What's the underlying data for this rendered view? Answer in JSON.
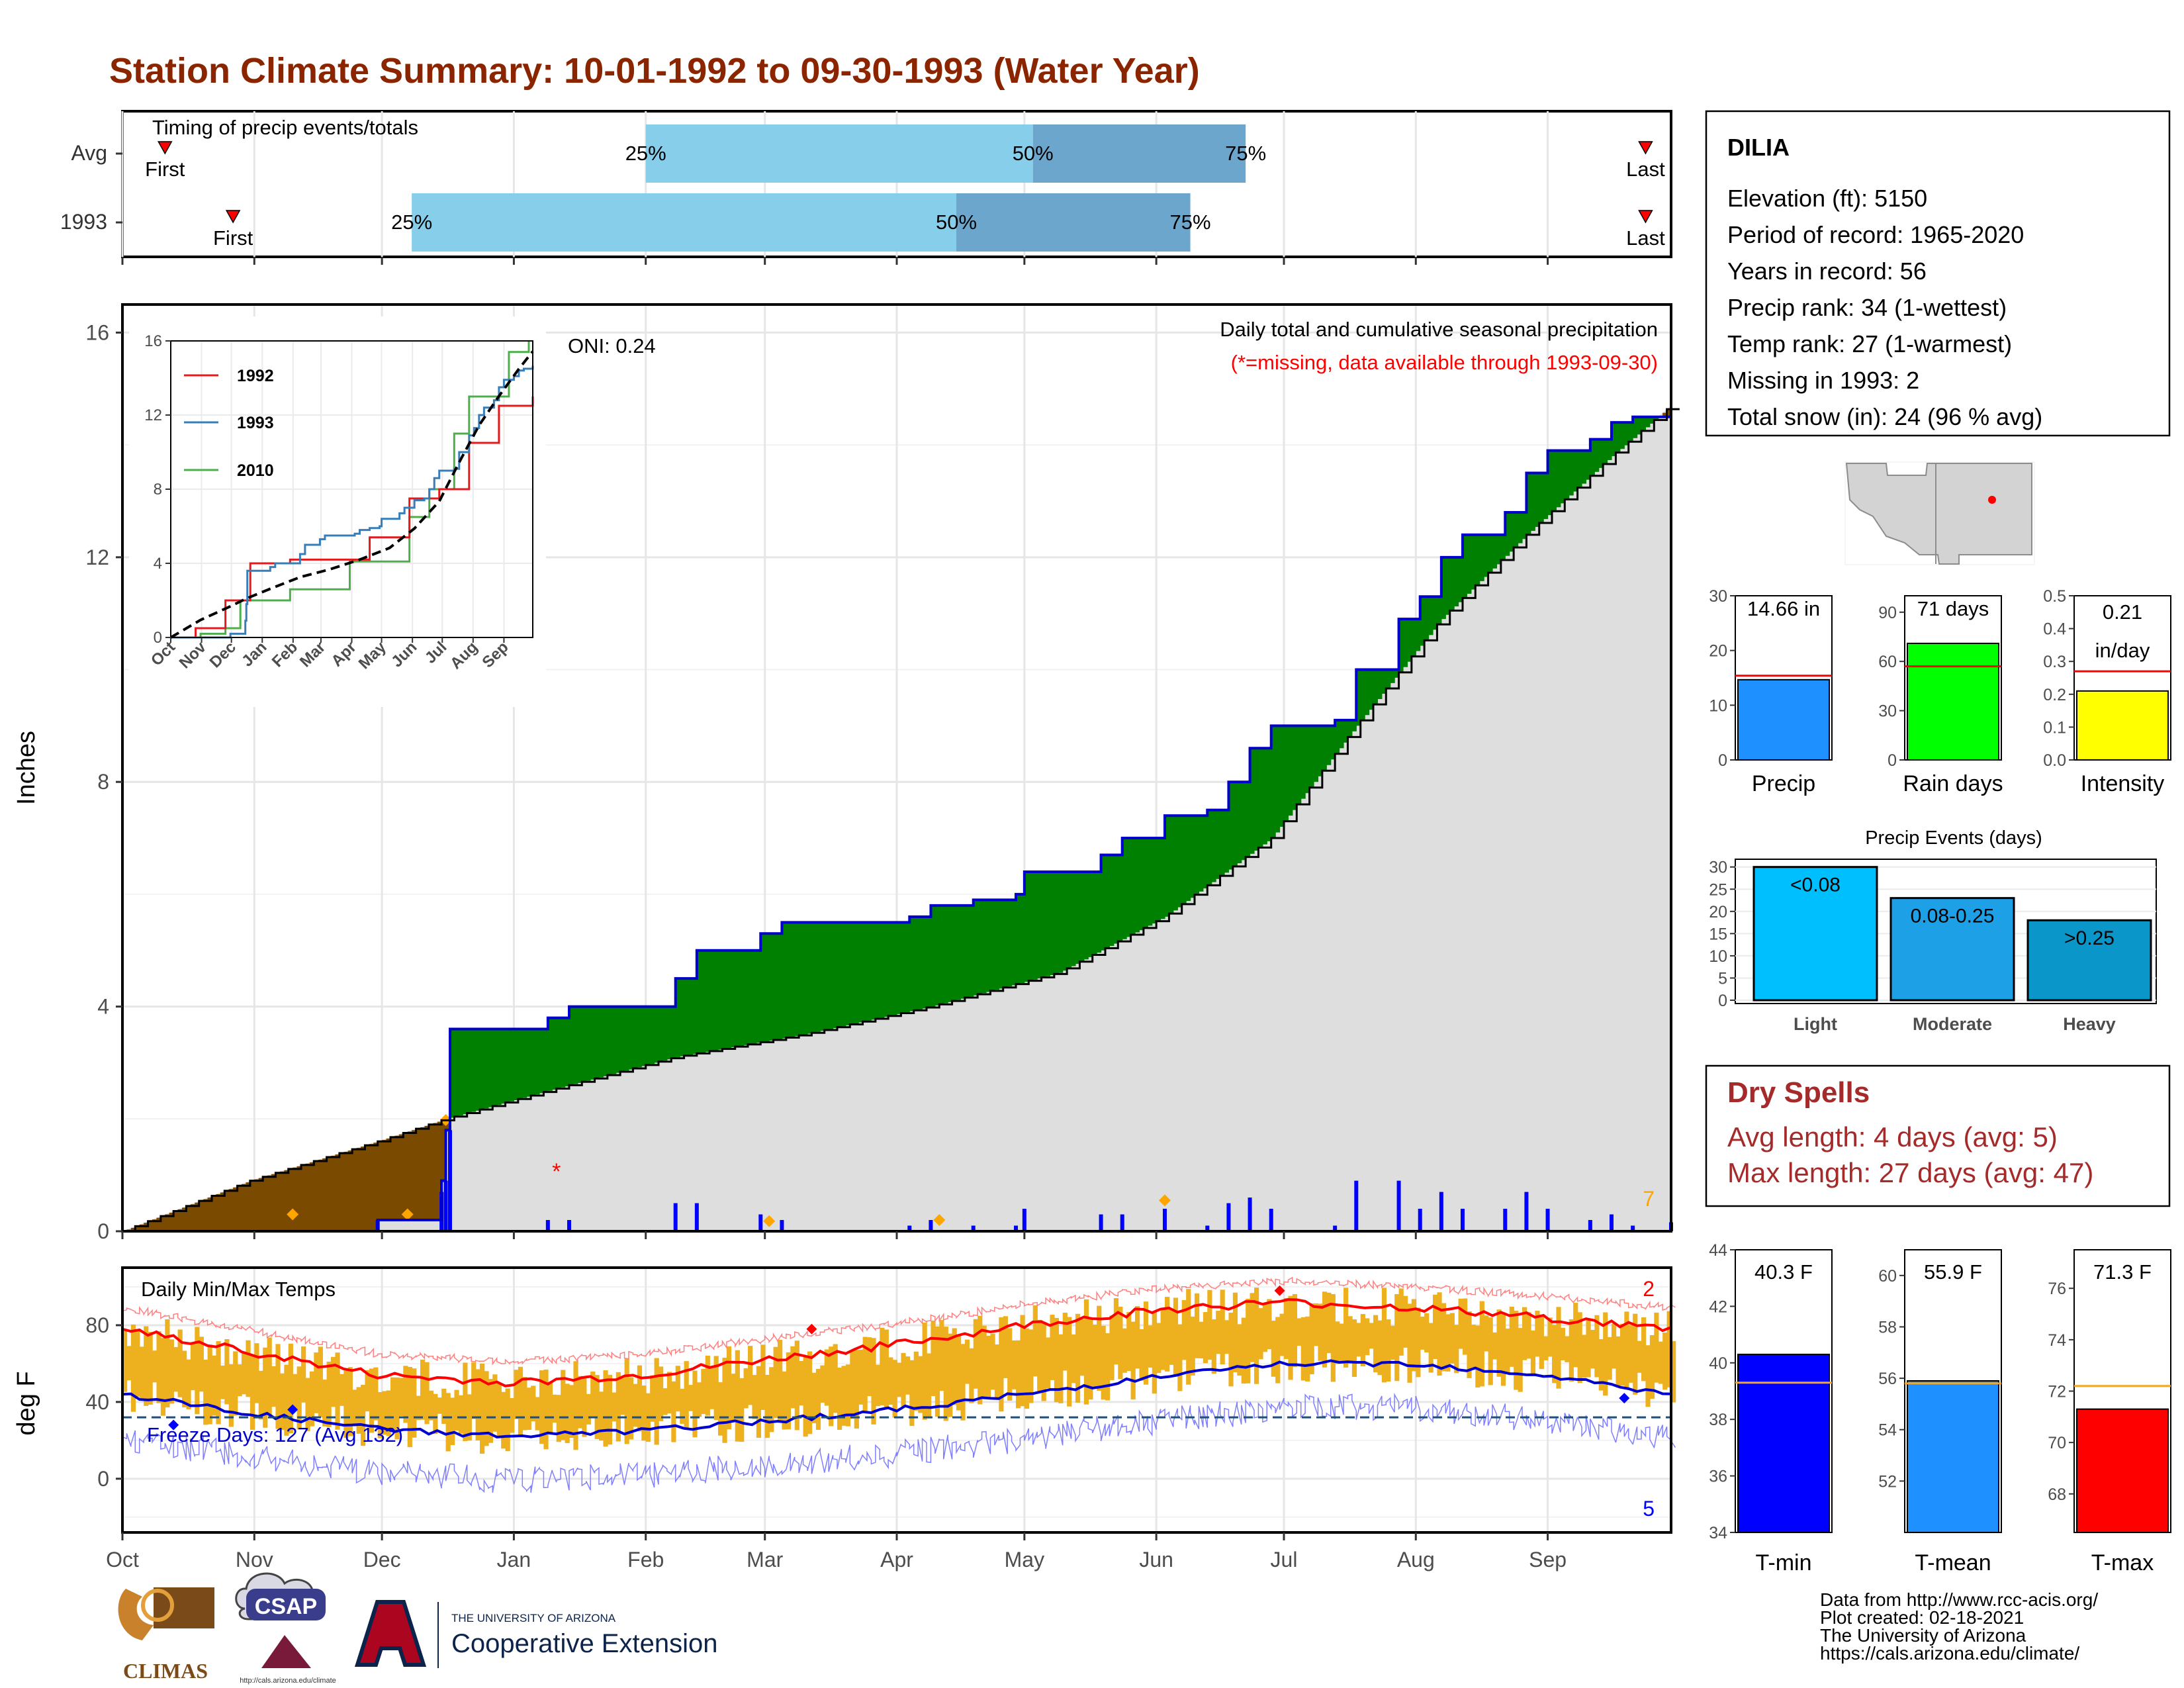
{
  "title": "Station Climate Summary: 10-01-1992 to 09-30-1993 (Water Year)",
  "colors": {
    "title": "#8B2500",
    "panel_border": "#000000",
    "grid": "#e6e6e6",
    "avg_bar_light": "#87CEEB",
    "avg_bar_dark": "#6CA6CD",
    "precip_fill_above": "#008000",
    "precip_fill_below": "#7A4A00",
    "cum_normal_fill": "#DEDEDE",
    "cum_line": "#0000CD",
    "daily_bar": "#0000FF",
    "extreme_marker": "#FFA500",
    "missing_marker": "#FF0000",
    "temp_bar": "#EDB120",
    "tmax_avg": "#FF0000",
    "tmin_avg": "#0000CD",
    "dry_spell_text": "#A52A2A"
  },
  "timing_panel": {
    "heading": "Timing of precip events/totals",
    "rows": [
      {
        "label": "Avg",
        "first_label": "First",
        "last_label": "Last",
        "p25_label": "25%",
        "p50_label": "50%",
        "p75_label": "75%",
        "first": 10,
        "p25": 123,
        "p50": 214,
        "p75": 264,
        "last": 358
      },
      {
        "label": "1993",
        "first_label": "First",
        "last_label": "Last",
        "p25_label": "25%",
        "p50_label": "50%",
        "p75_label": "75%",
        "first": 26,
        "p25": 68,
        "p50": 196,
        "p75": 251,
        "last": 358
      }
    ]
  },
  "station": {
    "name": "DILIA",
    "lines": [
      "Elevation (ft): 5150",
      "Period of record: 1965-2020",
      "Years in record: 56",
      "Precip rank: 34 (1-wettest)",
      "Temp rank: 27 (1-warmest)",
      "Missing in 1993: 2",
      "Total snow (in): 24 (96 % avg)"
    ]
  },
  "precip_panel": {
    "annotation_title": "Daily total and cumulative seasonal precipitation",
    "annotation_missing": "(*=missing, data available through 1993-09-30)",
    "oni": "ONI: 0.24",
    "ylabel": "Inches",
    "yticks": [
      "0",
      "4",
      "8",
      "12",
      "16"
    ],
    "corner_count": "7",
    "months": [
      "Oct",
      "Nov",
      "Dec",
      "Jan",
      "Feb",
      "Mar",
      "Apr",
      "May",
      "Jun",
      "Jul",
      "Aug",
      "Sep"
    ]
  },
  "inset": {
    "yticks": [
      "0",
      "4",
      "8",
      "12",
      "16"
    ],
    "months": [
      "Oct",
      "Nov",
      "Dec",
      "Jan",
      "Feb",
      "Mar",
      "Apr",
      "May",
      "Jun",
      "Jul",
      "Aug",
      "Sep"
    ],
    "legend": [
      {
        "label": "1992",
        "color": "#E41A1C"
      },
      {
        "label": "1993",
        "color": "#377EB8"
      },
      {
        "label": "2010",
        "color": "#4DAF4A"
      }
    ]
  },
  "temp_panel": {
    "heading": "Daily Min/Max Temps",
    "ylabel": "deg F",
    "yticks": [
      "0",
      "40",
      "80"
    ],
    "freeze_days": "Freeze Days: 127 (Avg 132)",
    "count_high": "2",
    "count_low": "5",
    "months": [
      "Oct",
      "Nov",
      "Dec",
      "Jan",
      "Feb",
      "Mar",
      "Apr",
      "May",
      "Jun",
      "Jul",
      "Aug",
      "Sep"
    ]
  },
  "mini_precip": {
    "bars": [
      {
        "label": "Precip",
        "value_text": "14.66 in",
        "value": 14.66,
        "avg": 15.4,
        "ymax": 30,
        "ticks": [
          "0",
          "10",
          "20",
          "30"
        ],
        "color": "#1E90FF"
      },
      {
        "label": "Rain days",
        "value_text": "71 days",
        "value": 71,
        "avg": 57,
        "ymax": 100,
        "ticks": [
          "0",
          "30",
          "60",
          "90"
        ],
        "color": "#00FF00"
      },
      {
        "label": "Intensity",
        "value_text": "0.21",
        "value_text2": "in/day",
        "value": 0.21,
        "avg": 0.27,
        "ymax": 0.5,
        "ticks": [
          "0.0",
          "0.1",
          "0.2",
          "0.3",
          "0.4",
          "0.5"
        ],
        "color": "#FFFF00"
      }
    ]
  },
  "precip_events": {
    "title": "Precip Events (days)",
    "yticks": [
      "0",
      "5",
      "10",
      "15",
      "20",
      "25",
      "30"
    ],
    "bars": [
      {
        "label": "Light",
        "bar_text": "<0.08",
        "value": 30,
        "color": "#00BFFF"
      },
      {
        "label": "Moderate",
        "bar_text": "0.08-0.25",
        "value": 23,
        "color": "#1EA0E6"
      },
      {
        "label": "Heavy",
        "bar_text": ">0.25",
        "value": 18,
        "color": "#0A96C8"
      }
    ]
  },
  "dry_spells": {
    "title": "Dry Spells",
    "avg_line": "Avg length: 4 days (avg: 5)",
    "max_line": "Max length: 27 days (avg: 47)"
  },
  "mini_temp": {
    "bars": [
      {
        "label": "T-min",
        "value_text": "40.3 F",
        "value": 40.3,
        "avg": 39.3,
        "ymin": 34,
        "ymax": 44,
        "ticks": [
          "34",
          "36",
          "38",
          "40",
          "42",
          "44"
        ],
        "color": "#0000FF"
      },
      {
        "label": "T-mean",
        "value_text": "55.9 F",
        "value": 55.9,
        "avg": 55.8,
        "ymin": 50,
        "ymax": 61,
        "ticks": [
          "52",
          "54",
          "56",
          "58",
          "60"
        ],
        "color": "#1E90FF"
      },
      {
        "label": "T-max",
        "value_text": "71.3 F",
        "value": 71.3,
        "avg": 72.2,
        "ymin": 66.5,
        "ymax": 77.5,
        "ticks": [
          "68",
          "70",
          "72",
          "74",
          "76"
        ],
        "color": "#FF0000"
      }
    ]
  },
  "footer": {
    "lines": [
      "Data from http://www.rcc-acis.org/",
      "Plot created: 02-18-2021",
      "The University of Arizona",
      "https://cals.arizona.edu/climate/"
    ],
    "logos": {
      "climas": "CLIMAS",
      "csap": "CSAP",
      "csap_url": "http://cals.arizona.edu/climate",
      "ua_small": "THE UNIVERSITY OF ARIZONA",
      "ua_big": "Cooperative Extension"
    }
  },
  "chart_data": [
    {
      "type": "area",
      "title": "Daily total and cumulative seasonal precipitation",
      "ylabel": "Inches",
      "ylim": [
        0,
        16
      ],
      "x": [
        "Oct",
        "Nov",
        "Dec",
        "Jan",
        "Feb",
        "Mar",
        "Apr",
        "May",
        "Jun",
        "Jul",
        "Aug",
        "Sep"
      ],
      "series": [
        {
          "name": "cumulative 1993",
          "points": [
            [
              0,
              0
            ],
            [
              30,
              0
            ],
            [
              60,
              0.2
            ],
            [
              75,
              0.9
            ],
            [
              76,
              1.8
            ],
            [
              77,
              3.6
            ],
            [
              95,
              3.6
            ],
            [
              100,
              3.8
            ],
            [
              105,
              4.0
            ],
            [
              130,
              4.5
            ],
            [
              135,
              5.0
            ],
            [
              150,
              5.3
            ],
            [
              155,
              5.5
            ],
            [
              185,
              5.6
            ],
            [
              190,
              5.8
            ],
            [
              200,
              5.9
            ],
            [
              210,
              6.0
            ],
            [
              212,
              6.4
            ],
            [
              230,
              6.7
            ],
            [
              235,
              7.0
            ],
            [
              245,
              7.4
            ],
            [
              255,
              7.5
            ],
            [
              260,
              8.0
            ],
            [
              265,
              8.6
            ],
            [
              270,
              9.0
            ],
            [
              285,
              9.1
            ],
            [
              290,
              10.0
            ],
            [
              300,
              10.9
            ],
            [
              305,
              11.3
            ],
            [
              310,
              12.0
            ],
            [
              315,
              12.4
            ],
            [
              325,
              12.8
            ],
            [
              330,
              13.5
            ],
            [
              335,
              13.9
            ],
            [
              345,
              14.1
            ],
            [
              350,
              14.4
            ],
            [
              355,
              14.5
            ],
            [
              364,
              14.66
            ]
          ]
        },
        {
          "name": "cumulative average",
          "points": [
            [
              0,
              0
            ],
            [
              30,
              0.9
            ],
            [
              60,
              1.6
            ],
            [
              76,
              2.0
            ],
            [
              100,
              2.5
            ],
            [
              130,
              3.1
            ],
            [
              160,
              3.5
            ],
            [
              190,
              4.0
            ],
            [
              220,
              4.6
            ],
            [
              245,
              5.6
            ],
            [
              270,
              7.0
            ],
            [
              290,
              9.0
            ],
            [
              310,
              10.9
            ],
            [
              330,
              12.4
            ],
            [
              350,
              13.8
            ],
            [
              364,
              14.7
            ]
          ]
        }
      ]
    },
    {
      "type": "line",
      "title": "Daily Min/Max Temps",
      "ylabel": "deg F",
      "ylim": [
        -28,
        110
      ],
      "x": [
        "Oct",
        "Nov",
        "Dec",
        "Jan",
        "Feb",
        "Mar",
        "Apr",
        "May",
        "Jun",
        "Jul",
        "Aug",
        "Sep"
      ],
      "series": [
        {
          "name": "avg max",
          "points": [
            [
              0,
              78
            ],
            [
              30,
              66
            ],
            [
              60,
              54
            ],
            [
              92,
              50
            ],
            [
              123,
              54
            ],
            [
              151,
              62
            ],
            [
              182,
              70
            ],
            [
              212,
              80
            ],
            [
              243,
              88
            ],
            [
              273,
              92
            ],
            [
              304,
              89
            ],
            [
              334,
              84
            ],
            [
              364,
              78
            ]
          ]
        },
        {
          "name": "avg min",
          "points": [
            [
              0,
              44
            ],
            [
              30,
              34
            ],
            [
              60,
              26
            ],
            [
              92,
              22
            ],
            [
              123,
              25
            ],
            [
              151,
              30
            ],
            [
              182,
              36
            ],
            [
              212,
              44
            ],
            [
              243,
              53
            ],
            [
              273,
              60
            ],
            [
              304,
              60
            ],
            [
              334,
              54
            ],
            [
              364,
              44
            ]
          ]
        }
      ]
    },
    {
      "type": "bar",
      "categories": [
        "Light",
        "Moderate",
        "Heavy"
      ],
      "values": [
        30,
        23,
        18
      ],
      "title": "Precip Events (days)",
      "ylim": [
        0,
        30
      ]
    },
    {
      "type": "bar",
      "categories": [
        "Precip",
        "Rain days",
        "Intensity"
      ],
      "values": [
        14.66,
        71,
        0.21
      ]
    },
    {
      "type": "bar",
      "categories": [
        "T-min",
        "T-mean",
        "T-max"
      ],
      "values": [
        40.3,
        55.9,
        71.3
      ]
    }
  ]
}
